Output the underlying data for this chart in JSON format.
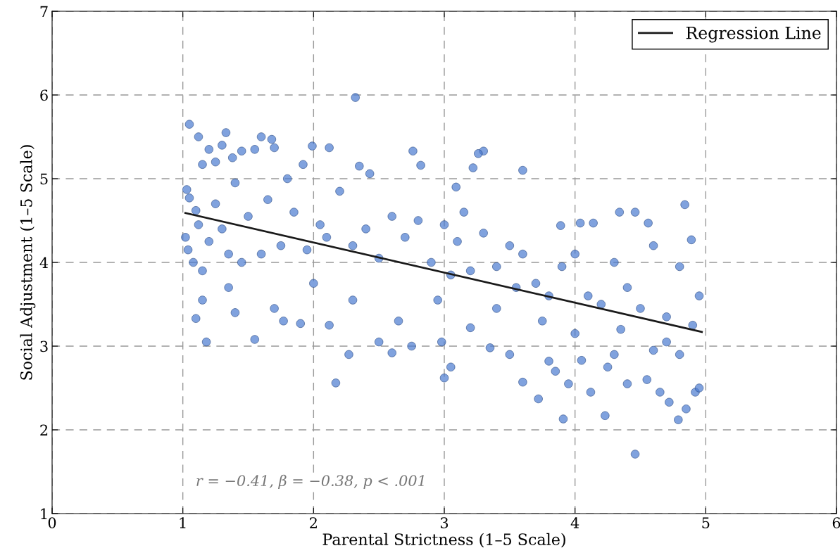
{
  "chart_data": {
    "type": "scatter",
    "xlabel": "Parental Strictness (1–5 Scale)",
    "ylabel": "Social Adjustment (1–5 Scale)",
    "xlim": [
      0,
      6
    ],
    "ylim": [
      1,
      7
    ],
    "xticks": [
      0,
      1,
      2,
      3,
      4,
      5,
      6
    ],
    "yticks": [
      1,
      2,
      3,
      4,
      5,
      6,
      7
    ],
    "grid": true,
    "legend": "top right",
    "annotations": [
      "r = −0.41, β = −0.38, p < .001"
    ],
    "series": [
      {
        "marker": "circle",
        "color": "#4a7bd0",
        "x": [
          1.05,
          1.12,
          1.15,
          1.03,
          1.05,
          1.1,
          1.2,
          1.25,
          1.3,
          1.33,
          1.38,
          1.45,
          1.55,
          1.6,
          1.7,
          1.68,
          1.8,
          1.92,
          1.99,
          2.12,
          2.32,
          2.35,
          2.43,
          2.76,
          2.82,
          3.3,
          3.22,
          3.26,
          3.6,
          3.09,
          4.84,
          4.46,
          4.34,
          4.04,
          4.14,
          3.89,
          4.56,
          4.89,
          4.46,
          3.91,
          4.79,
          4.23,
          1.02,
          1.04,
          1.08,
          1.12,
          1.15,
          1.2,
          1.25,
          1.3,
          1.35,
          1.4,
          1.45,
          1.5,
          1.6,
          1.65,
          1.75,
          1.85,
          1.95,
          2.05,
          2.1,
          2.2,
          2.3,
          2.4,
          2.5,
          2.6,
          2.7,
          2.8,
          2.9,
          3.0,
          3.05,
          3.1,
          3.15,
          3.2,
          3.3,
          3.4,
          3.5,
          3.55,
          3.6,
          3.7,
          3.8,
          3.9,
          4.0,
          4.1,
          4.2,
          4.3,
          4.4,
          4.5,
          4.6,
          4.7,
          4.8,
          4.9,
          4.95,
          1.18,
          1.1,
          1.15,
          1.35,
          1.55,
          1.77,
          1.9,
          2.17,
          2.27,
          2.12,
          2.5,
          2.6,
          2.75,
          2.98,
          3.0,
          3.05,
          3.2,
          3.35,
          3.5,
          3.6,
          3.72,
          3.8,
          3.85,
          3.95,
          4.05,
          4.12,
          4.25,
          4.3,
          4.4,
          4.55,
          4.6,
          4.65,
          4.72,
          4.8,
          4.85,
          4.92,
          4.95,
          1.4,
          1.7,
          2.0,
          2.3,
          2.65,
          2.95,
          3.4,
          3.75,
          4.0,
          4.35,
          4.7
        ],
        "values": [
          5.65,
          5.5,
          5.17,
          4.87,
          4.77,
          4.62,
          5.35,
          5.2,
          5.4,
          5.55,
          5.25,
          5.33,
          5.35,
          5.5,
          5.37,
          5.47,
          5.0,
          5.17,
          5.39,
          5.37,
          5.97,
          5.15,
          5.06,
          5.33,
          5.16,
          5.33,
          5.13,
          5.3,
          5.1,
          4.9,
          4.69,
          4.6,
          4.6,
          4.47,
          4.47,
          4.44,
          4.47,
          4.27,
          1.71,
          2.13,
          2.12,
          2.17,
          4.3,
          4.15,
          4.0,
          4.45,
          3.9,
          4.25,
          4.7,
          4.4,
          4.1,
          4.95,
          4.0,
          4.55,
          4.1,
          4.75,
          4.2,
          4.6,
          4.15,
          4.45,
          4.3,
          4.85,
          4.2,
          4.4,
          4.05,
          4.55,
          4.3,
          4.5,
          4.0,
          4.45,
          3.85,
          4.25,
          4.6,
          3.9,
          4.35,
          3.95,
          4.2,
          3.7,
          4.1,
          3.75,
          3.6,
          3.95,
          4.1,
          3.6,
          3.5,
          4.0,
          3.7,
          3.45,
          4.2,
          3.35,
          3.95,
          3.25,
          3.6,
          3.05,
          3.33,
          3.55,
          3.7,
          3.08,
          3.3,
          3.27,
          2.56,
          2.9,
          3.25,
          3.05,
          2.92,
          3.0,
          3.05,
          2.62,
          2.75,
          3.22,
          2.98,
          2.9,
          2.57,
          2.37,
          2.82,
          2.7,
          2.55,
          2.83,
          2.45,
          2.75,
          2.9,
          2.55,
          2.6,
          2.95,
          2.45,
          2.33,
          2.9,
          2.25,
          2.45,
          2.5,
          3.4,
          3.45,
          3.75,
          3.55,
          3.3,
          3.55,
          3.45,
          3.3,
          3.15,
          3.2,
          3.05
        ]
      },
      {
        "type": "line",
        "name": "Regression Line",
        "color": "#1a1a1a",
        "x": [
          1.02,
          4.97
        ],
        "values": [
          4.59,
          3.17
        ]
      }
    ]
  }
}
